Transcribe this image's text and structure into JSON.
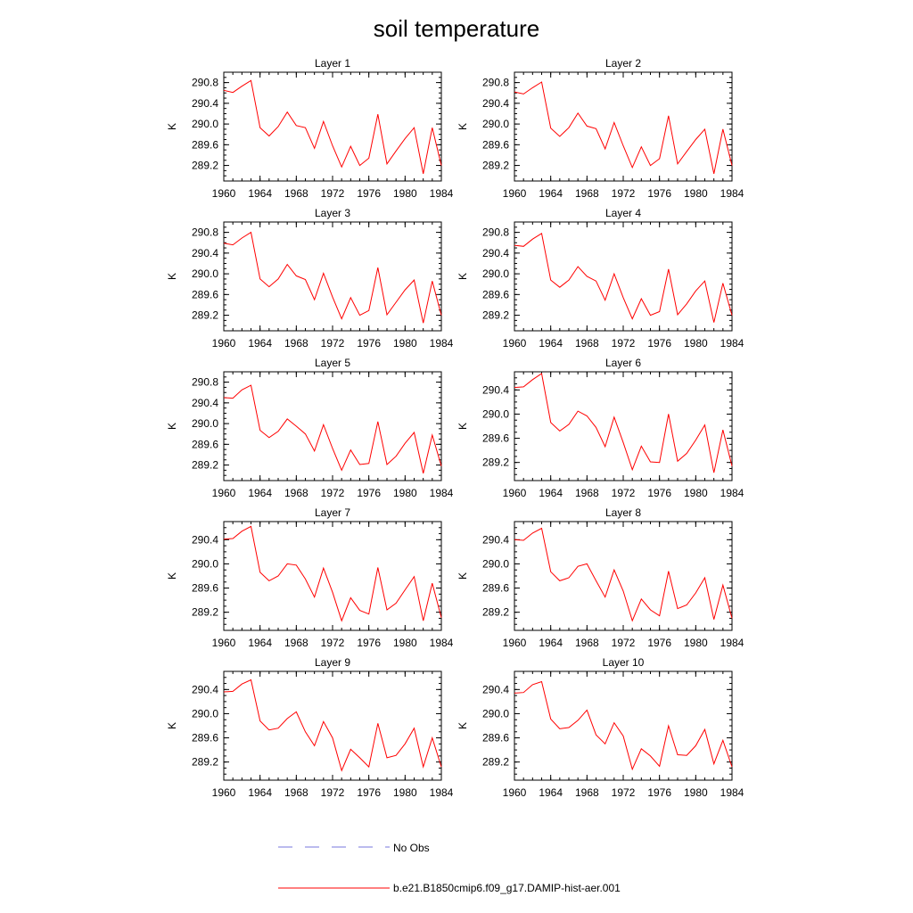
{
  "figure": {
    "title": "soil temperature"
  },
  "legend": {
    "items": [
      {
        "label": "No Obs",
        "color": "#7777dd",
        "style": "dashed"
      },
      {
        "label": "b.e21.B1850cmip6.f09_g17.DAMIP-hist-aer.001",
        "color": "#ff0000",
        "style": "solid"
      }
    ]
  },
  "chart_data": [
    {
      "type": "line",
      "title": "Layer 1",
      "ylabel": "K",
      "xlim": [
        1960,
        1984
      ],
      "ylim": [
        288.9,
        291.0
      ],
      "xticks": [
        1960,
        1964,
        1968,
        1972,
        1976,
        1980,
        1984
      ],
      "xtick_labels": [
        "1960",
        "1964",
        "1968",
        "1972",
        "1976",
        "1980",
        "1984"
      ],
      "yticks": [
        289.2,
        289.6,
        290.0,
        290.4,
        290.8
      ],
      "ytick_labels": [
        "289.2",
        "289.6",
        "290.0",
        "290.4",
        "290.8"
      ],
      "series": [
        {
          "color": "#ff0000",
          "x": [
            1960,
            1961,
            1962,
            1963,
            1964,
            1965,
            1966,
            1967,
            1968,
            1969,
            1970,
            1971,
            1972,
            1973,
            1974,
            1975,
            1976,
            1977,
            1978,
            1979,
            1980,
            1981,
            1982,
            1983,
            1984
          ],
          "values": [
            290.65,
            290.61,
            290.73,
            290.84,
            289.93,
            289.77,
            289.95,
            290.23,
            289.97,
            289.93,
            289.53,
            290.05,
            289.58,
            289.17,
            289.57,
            289.2,
            289.34,
            290.19,
            289.23,
            289.48,
            289.72,
            289.93,
            289.04,
            289.93,
            289.2
          ]
        }
      ]
    },
    {
      "type": "line",
      "title": "Layer 2",
      "ylabel": "K",
      "xlim": [
        1960,
        1984
      ],
      "ylim": [
        288.9,
        291.0
      ],
      "xticks": [
        1960,
        1964,
        1968,
        1972,
        1976,
        1980,
        1984
      ],
      "xtick_labels": [
        "1960",
        "1964",
        "1968",
        "1972",
        "1976",
        "1980",
        "1984"
      ],
      "yticks": [
        289.2,
        289.6,
        290.0,
        290.4,
        290.8
      ],
      "ytick_labels": [
        "289.2",
        "289.6",
        "290.0",
        "290.4",
        "290.8"
      ],
      "series": [
        {
          "color": "#ff0000",
          "x": [
            1960,
            1961,
            1962,
            1963,
            1964,
            1965,
            1966,
            1967,
            1968,
            1969,
            1970,
            1971,
            1972,
            1973,
            1974,
            1975,
            1976,
            1977,
            1978,
            1979,
            1980,
            1981,
            1982,
            1983,
            1984
          ],
          "values": [
            290.62,
            290.58,
            290.7,
            290.81,
            289.92,
            289.76,
            289.93,
            290.21,
            289.96,
            289.91,
            289.52,
            290.03,
            289.58,
            289.16,
            289.56,
            289.2,
            289.33,
            290.16,
            289.23,
            289.47,
            289.7,
            289.9,
            289.04,
            289.9,
            289.2
          ]
        }
      ]
    },
    {
      "type": "line",
      "title": "Layer 3",
      "ylabel": "K",
      "xlim": [
        1960,
        1984
      ],
      "ylim": [
        288.9,
        291.0
      ],
      "xticks": [
        1960,
        1964,
        1968,
        1972,
        1976,
        1980,
        1984
      ],
      "xtick_labels": [
        "1960",
        "1964",
        "1968",
        "1972",
        "1976",
        "1980",
        "1984"
      ],
      "yticks": [
        289.2,
        289.6,
        290.0,
        290.4,
        290.8
      ],
      "ytick_labels": [
        "289.2",
        "289.6",
        "290.0",
        "290.4",
        "290.8"
      ],
      "series": [
        {
          "color": "#ff0000",
          "x": [
            1960,
            1961,
            1962,
            1963,
            1964,
            1965,
            1966,
            1967,
            1968,
            1969,
            1970,
            1971,
            1972,
            1973,
            1974,
            1975,
            1976,
            1977,
            1978,
            1979,
            1980,
            1981,
            1982,
            1983,
            1984
          ],
          "values": [
            290.59,
            290.56,
            290.69,
            290.8,
            289.9,
            289.75,
            289.9,
            290.18,
            289.96,
            289.89,
            289.5,
            290.01,
            289.55,
            289.13,
            289.54,
            289.2,
            289.29,
            290.12,
            289.21,
            289.45,
            289.69,
            289.88,
            289.05,
            289.86,
            289.2
          ]
        }
      ]
    },
    {
      "type": "line",
      "title": "Layer 4",
      "ylabel": "K",
      "xlim": [
        1960,
        1984
      ],
      "ylim": [
        288.9,
        291.0
      ],
      "xticks": [
        1960,
        1964,
        1968,
        1972,
        1976,
        1980,
        1984
      ],
      "xtick_labels": [
        "1960",
        "1964",
        "1968",
        "1972",
        "1976",
        "1980",
        "1984"
      ],
      "yticks": [
        289.2,
        289.6,
        290.0,
        290.4,
        290.8
      ],
      "ytick_labels": [
        "289.2",
        "289.6",
        "290.0",
        "290.4",
        "290.8"
      ],
      "series": [
        {
          "color": "#ff0000",
          "x": [
            1960,
            1961,
            1962,
            1963,
            1964,
            1965,
            1966,
            1967,
            1968,
            1969,
            1970,
            1971,
            1972,
            1973,
            1974,
            1975,
            1976,
            1977,
            1978,
            1979,
            1980,
            1981,
            1982,
            1983,
            1984
          ],
          "values": [
            290.55,
            290.53,
            290.67,
            290.78,
            289.88,
            289.74,
            289.88,
            290.14,
            289.95,
            289.86,
            289.49,
            290.0,
            289.54,
            289.13,
            289.52,
            289.2,
            289.27,
            290.09,
            289.21,
            289.42,
            289.67,
            289.86,
            289.06,
            289.82,
            289.2
          ]
        }
      ]
    },
    {
      "type": "line",
      "title": "Layer 5",
      "ylabel": "K",
      "xlim": [
        1960,
        1984
      ],
      "ylim": [
        288.9,
        291.0
      ],
      "xticks": [
        1960,
        1964,
        1968,
        1972,
        1976,
        1980,
        1984
      ],
      "xtick_labels": [
        "1960",
        "1964",
        "1968",
        "1972",
        "1976",
        "1980",
        "1984"
      ],
      "yticks": [
        289.2,
        289.6,
        290.0,
        290.4,
        290.8
      ],
      "ytick_labels": [
        "289.2",
        "289.6",
        "290.0",
        "290.4",
        "290.8"
      ],
      "series": [
        {
          "color": "#ff0000",
          "x": [
            1960,
            1961,
            1962,
            1963,
            1964,
            1965,
            1966,
            1967,
            1968,
            1969,
            1970,
            1971,
            1972,
            1973,
            1974,
            1975,
            1976,
            1977,
            1978,
            1979,
            1980,
            1981,
            1982,
            1983,
            1984
          ],
          "values": [
            290.5,
            290.49,
            290.65,
            290.74,
            289.87,
            289.73,
            289.85,
            290.09,
            289.95,
            289.8,
            289.47,
            289.98,
            289.52,
            289.1,
            289.49,
            289.21,
            289.23,
            290.04,
            289.21,
            289.37,
            289.62,
            289.83,
            289.04,
            289.78,
            289.18
          ]
        }
      ]
    },
    {
      "type": "line",
      "title": "Layer 6",
      "ylabel": "K",
      "xlim": [
        1960,
        1984
      ],
      "ylim": [
        288.9,
        290.7
      ],
      "xticks": [
        1960,
        1964,
        1968,
        1972,
        1976,
        1980,
        1984
      ],
      "xtick_labels": [
        "1960",
        "1964",
        "1968",
        "1972",
        "1976",
        "1980",
        "1984"
      ],
      "yticks": [
        289.2,
        289.6,
        290.0,
        290.4
      ],
      "ytick_labels": [
        "289.2",
        "289.6",
        "290.0",
        "290.4"
      ],
      "series": [
        {
          "color": "#ff0000",
          "x": [
            1960,
            1961,
            1962,
            1963,
            1964,
            1965,
            1966,
            1967,
            1968,
            1969,
            1970,
            1971,
            1972,
            1973,
            1974,
            1975,
            1976,
            1977,
            1978,
            1979,
            1980,
            1981,
            1982,
            1983,
            1984
          ],
          "values": [
            290.44,
            290.45,
            290.57,
            290.67,
            289.86,
            289.72,
            289.83,
            290.05,
            289.97,
            289.78,
            289.46,
            289.95,
            289.53,
            289.08,
            289.47,
            289.21,
            289.2,
            290.0,
            289.22,
            289.35,
            289.57,
            289.82,
            289.03,
            289.74,
            289.14
          ]
        }
      ]
    },
    {
      "type": "line",
      "title": "Layer 7",
      "ylabel": "K",
      "xlim": [
        1960,
        1984
      ],
      "ylim": [
        288.9,
        290.7
      ],
      "xticks": [
        1960,
        1964,
        1968,
        1972,
        1976,
        1980,
        1984
      ],
      "xtick_labels": [
        "1960",
        "1964",
        "1968",
        "1972",
        "1976",
        "1980",
        "1984"
      ],
      "yticks": [
        289.2,
        289.6,
        290.0,
        290.4
      ],
      "ytick_labels": [
        "289.2",
        "289.6",
        "290.0",
        "290.4"
      ],
      "series": [
        {
          "color": "#ff0000",
          "x": [
            1960,
            1961,
            1962,
            1963,
            1964,
            1965,
            1966,
            1967,
            1968,
            1969,
            1970,
            1971,
            1972,
            1973,
            1974,
            1975,
            1976,
            1977,
            1978,
            1979,
            1980,
            1981,
            1982,
            1983,
            1984
          ],
          "values": [
            290.41,
            290.42,
            290.54,
            290.62,
            289.86,
            289.72,
            289.8,
            290.0,
            289.98,
            289.75,
            289.45,
            289.93,
            289.53,
            289.06,
            289.44,
            289.23,
            289.17,
            289.94,
            289.24,
            289.35,
            289.57,
            289.79,
            289.06,
            289.68,
            289.11
          ]
        }
      ]
    },
    {
      "type": "line",
      "title": "Layer 8",
      "ylabel": "K",
      "xlim": [
        1960,
        1984
      ],
      "ylim": [
        288.9,
        290.7
      ],
      "xticks": [
        1960,
        1964,
        1968,
        1972,
        1976,
        1980,
        1984
      ],
      "xtick_labels": [
        "1960",
        "1964",
        "1968",
        "1972",
        "1976",
        "1980",
        "1984"
      ],
      "yticks": [
        289.2,
        289.6,
        290.0,
        290.4
      ],
      "ytick_labels": [
        "289.2",
        "289.6",
        "290.0",
        "290.4"
      ],
      "series": [
        {
          "color": "#ff0000",
          "x": [
            1960,
            1961,
            1962,
            1963,
            1964,
            1965,
            1966,
            1967,
            1968,
            1969,
            1970,
            1971,
            1972,
            1973,
            1974,
            1975,
            1976,
            1977,
            1978,
            1979,
            1980,
            1981,
            1982,
            1983,
            1984
          ],
          "values": [
            290.4,
            290.39,
            290.51,
            290.59,
            289.87,
            289.72,
            289.77,
            289.96,
            290.0,
            289.72,
            289.45,
            289.9,
            289.55,
            289.06,
            289.42,
            289.24,
            289.14,
            289.88,
            289.26,
            289.32,
            289.52,
            289.77,
            289.08,
            289.65,
            289.1
          ]
        }
      ]
    },
    {
      "type": "line",
      "title": "Layer 9",
      "ylabel": "K",
      "xlim": [
        1960,
        1984
      ],
      "ylim": [
        288.9,
        290.7
      ],
      "xticks": [
        1960,
        1964,
        1968,
        1972,
        1976,
        1980,
        1984
      ],
      "xtick_labels": [
        "1960",
        "1964",
        "1968",
        "1972",
        "1976",
        "1980",
        "1984"
      ],
      "yticks": [
        289.2,
        289.6,
        290.0,
        290.4
      ],
      "ytick_labels": [
        "289.2",
        "289.6",
        "290.0",
        "290.4"
      ],
      "series": [
        {
          "color": "#ff0000",
          "x": [
            1960,
            1961,
            1962,
            1963,
            1964,
            1965,
            1966,
            1967,
            1968,
            1969,
            1970,
            1971,
            1972,
            1973,
            1974,
            1975,
            1976,
            1977,
            1978,
            1979,
            1980,
            1981,
            1982,
            1983,
            1984
          ],
          "values": [
            290.36,
            290.37,
            290.49,
            290.56,
            289.88,
            289.73,
            289.76,
            289.92,
            290.03,
            289.7,
            289.47,
            289.87,
            289.6,
            289.06,
            289.41,
            289.27,
            289.12,
            289.84,
            289.27,
            289.31,
            289.5,
            289.76,
            289.12,
            289.6,
            289.12
          ]
        }
      ]
    },
    {
      "type": "line",
      "title": "Layer 10",
      "ylabel": "K",
      "xlim": [
        1960,
        1984
      ],
      "ylim": [
        288.9,
        290.7
      ],
      "xticks": [
        1960,
        1964,
        1968,
        1972,
        1976,
        1980,
        1984
      ],
      "xtick_labels": [
        "1960",
        "1964",
        "1968",
        "1972",
        "1976",
        "1980",
        "1984"
      ],
      "yticks": [
        289.2,
        289.6,
        290.0,
        290.4
      ],
      "ytick_labels": [
        "289.2",
        "289.6",
        "290.0",
        "290.4"
      ],
      "series": [
        {
          "color": "#ff0000",
          "x": [
            1960,
            1961,
            1962,
            1963,
            1964,
            1965,
            1966,
            1967,
            1968,
            1969,
            1970,
            1971,
            1972,
            1973,
            1974,
            1975,
            1976,
            1977,
            1978,
            1979,
            1980,
            1981,
            1982,
            1983,
            1984
          ],
          "values": [
            290.34,
            290.35,
            290.48,
            290.53,
            289.91,
            289.75,
            289.77,
            289.89,
            290.06,
            289.65,
            289.5,
            289.85,
            289.63,
            289.08,
            289.42,
            289.3,
            289.13,
            289.8,
            289.32,
            289.31,
            289.47,
            289.74,
            289.17,
            289.56,
            289.12
          ]
        }
      ]
    }
  ]
}
